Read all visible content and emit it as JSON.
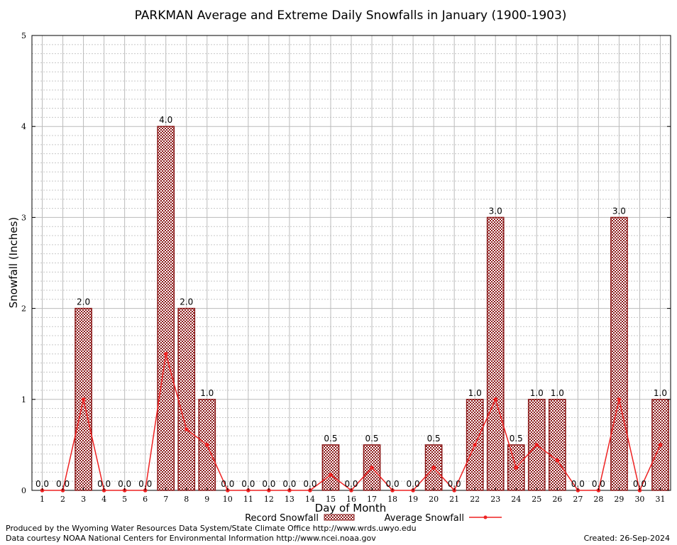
{
  "chart_data": {
    "type": "bar",
    "title": "PARKMAN Average and Extreme Daily Snowfalls in January (1900-1903)",
    "xlabel": "Day of Month",
    "ylabel": "Snowfall (Inches)",
    "ylim": [
      0,
      5
    ],
    "yticks": [
      "0",
      "1",
      "2",
      "3",
      "4",
      "5"
    ],
    "categories": [
      "1",
      "2",
      "3",
      "4",
      "5",
      "6",
      "7",
      "8",
      "9",
      "10",
      "11",
      "12",
      "13",
      "14",
      "15",
      "16",
      "17",
      "18",
      "19",
      "20",
      "21",
      "22",
      "23",
      "24",
      "25",
      "26",
      "27",
      "28",
      "29",
      "30",
      "31"
    ],
    "series": [
      {
        "name": "Record Snowfall",
        "type": "bar",
        "color": "#8b1a1a",
        "values": [
          0,
          0,
          2,
          0,
          0,
          0,
          4,
          2,
          1,
          0,
          0,
          0,
          0,
          0,
          0.5,
          0,
          0.5,
          0,
          0,
          0.5,
          0,
          1,
          3,
          0.5,
          1,
          1,
          0,
          0,
          3,
          0,
          1
        ],
        "labels": [
          "0.0",
          "0.0",
          "2.0",
          "0.0",
          "0.0",
          "0.0",
          "4.0",
          "2.0",
          "1.0",
          "0.0",
          "0.0",
          "0.0",
          "0.0",
          "0.0",
          "0.5",
          "0.0",
          "0.5",
          "0.0",
          "0.0",
          "0.5",
          "0.0",
          "1.0",
          "3.0",
          "0.5",
          "1.0",
          "1.0",
          "0.0",
          "0.0",
          "3.0",
          "0.0",
          "1.0"
        ]
      },
      {
        "name": "Average Snowfall",
        "type": "line",
        "color": "#ee2222",
        "values": [
          0,
          0,
          1.0,
          0,
          0,
          0,
          1.5,
          0.67,
          0.5,
          0,
          0,
          0,
          0,
          0,
          0.17,
          0,
          0.25,
          0,
          0,
          0.25,
          0,
          0.5,
          1.0,
          0.25,
          0.5,
          0.33,
          0,
          0,
          1.0,
          0,
          0.5
        ]
      }
    ],
    "grid": true,
    "legend": "bottom-center"
  },
  "footer": {
    "credit_line1": "Produced by the Wyoming Water Resources Data System/State Climate Office http://www.wrds.uwyo.edu",
    "credit_line2": "Data courtesy NOAA National Centers for Environmental Information http://www.ncei.noaa.gov",
    "created": "Created: 26-Sep-2024"
  }
}
